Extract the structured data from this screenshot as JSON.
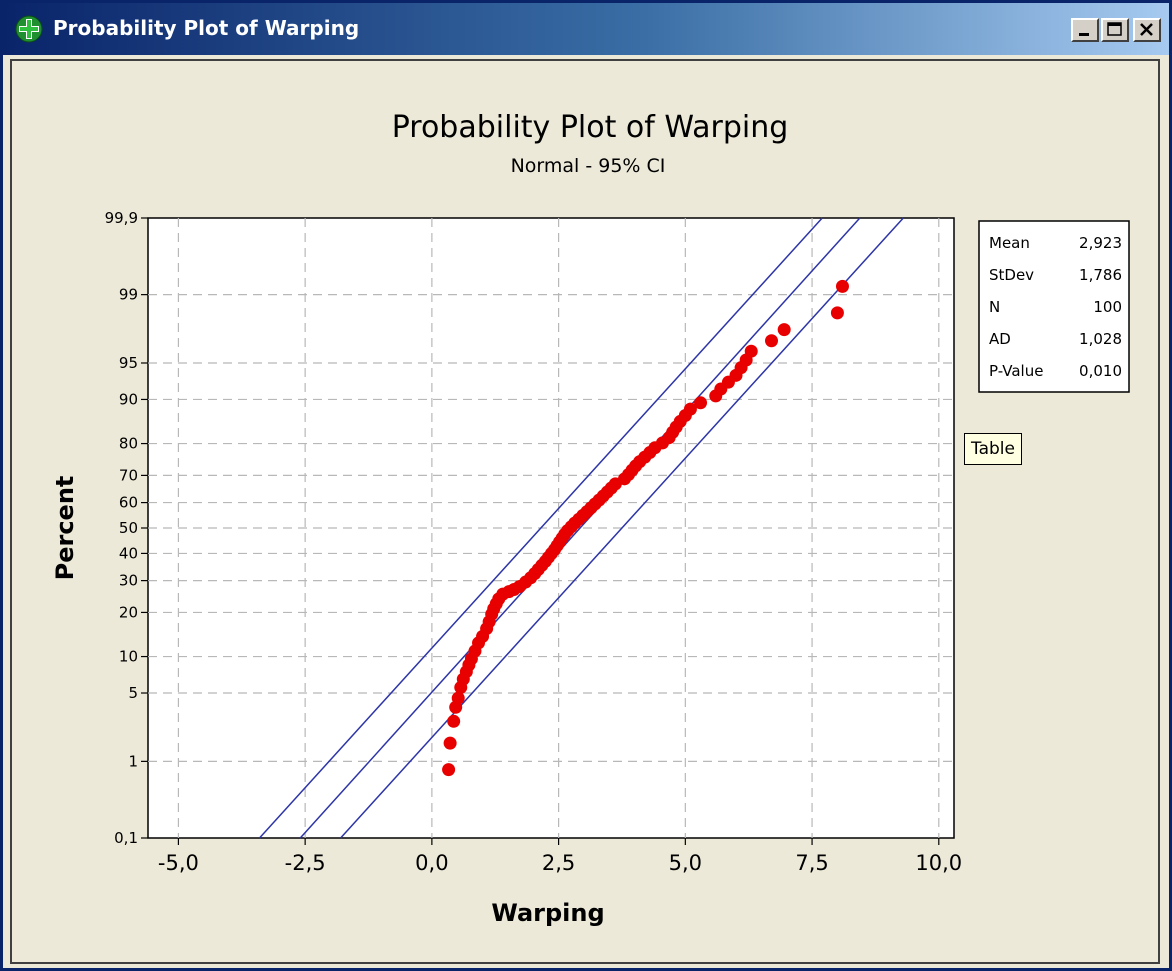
{
  "window": {
    "title": "Probability Plot of Warping",
    "icon": "minitab-plus-icon",
    "controls": [
      "minimize-icon",
      "maximize-icon",
      "close-icon"
    ]
  },
  "chart_data": {
    "type": "scatter",
    "title": "Probability Plot of Warping",
    "subtitle": "Normal - 95% CI",
    "xlabel": "Warping",
    "ylabel": "Percent",
    "xlim": [
      -5.6,
      10.3
    ],
    "ylim": [
      0.1,
      99.9
    ],
    "y_scale": "normal-probability",
    "grid": true,
    "x_ticks": [
      -5,
      -2.5,
      0,
      2.5,
      5,
      7.5,
      10
    ],
    "x_tick_labels": [
      "-5,0",
      "-2,5",
      "0,0",
      "2,5",
      "5,0",
      "7,5",
      "10,0"
    ],
    "y_ticks": [
      0.1,
      1,
      5,
      10,
      20,
      30,
      40,
      50,
      60,
      70,
      80,
      90,
      95,
      99,
      99.9
    ],
    "y_tick_labels": [
      "0,1",
      "1",
      "5",
      "10",
      "20",
      "30",
      "40",
      "50",
      "60",
      "70",
      "80",
      "90",
      "95",
      "99",
      "99,9"
    ],
    "fit_line_color": "#2d35a8",
    "point_color": "#e80000",
    "points": [
      [
        0.33,
        0.8
      ],
      [
        0.36,
        1.6
      ],
      [
        0.43,
        2.7
      ],
      [
        0.47,
        3.7
      ],
      [
        0.52,
        4.5
      ],
      [
        0.57,
        5.6
      ],
      [
        0.62,
        6.6
      ],
      [
        0.68,
        7.6
      ],
      [
        0.73,
        8.6
      ],
      [
        0.78,
        9.6
      ],
      [
        0.85,
        11.0
      ],
      [
        0.92,
        12.6
      ],
      [
        1.0,
        14.0
      ],
      [
        1.08,
        15.8
      ],
      [
        1.13,
        17.5
      ],
      [
        1.18,
        19.5
      ],
      [
        1.22,
        21.0
      ],
      [
        1.27,
        22.5
      ],
      [
        1.32,
        24.0
      ],
      [
        1.4,
        25.5
      ],
      [
        1.52,
        26.3
      ],
      [
        1.62,
        27.0
      ],
      [
        1.73,
        28.0
      ],
      [
        1.85,
        29.5
      ],
      [
        1.95,
        31.0
      ],
      [
        2.03,
        32.5
      ],
      [
        2.1,
        34.0
      ],
      [
        2.17,
        35.5
      ],
      [
        2.24,
        37.0
      ],
      [
        2.3,
        38.5
      ],
      [
        2.36,
        40.0
      ],
      [
        2.42,
        41.5
      ],
      [
        2.47,
        43.0
      ],
      [
        2.52,
        44.5
      ],
      [
        2.57,
        46.0
      ],
      [
        2.62,
        47.5
      ],
      [
        2.68,
        49.0
      ],
      [
        2.75,
        50.5
      ],
      [
        2.82,
        52.0
      ],
      [
        2.9,
        53.5
      ],
      [
        2.98,
        55.0
      ],
      [
        3.06,
        56.5
      ],
      [
        3.14,
        58.0
      ],
      [
        3.22,
        59.5
      ],
      [
        3.3,
        61.0
      ],
      [
        3.38,
        62.5
      ],
      [
        3.46,
        64.0
      ],
      [
        3.54,
        65.5
      ],
      [
        3.62,
        67.0
      ],
      [
        3.8,
        68.8
      ],
      [
        3.88,
        70.3
      ],
      [
        3.95,
        71.8
      ],
      [
        4.02,
        73.2
      ],
      [
        4.1,
        74.6
      ],
      [
        4.2,
        76.0
      ],
      [
        4.3,
        77.4
      ],
      [
        4.4,
        78.8
      ],
      [
        4.55,
        80.2
      ],
      [
        4.68,
        81.6
      ],
      [
        4.75,
        83.0
      ],
      [
        4.82,
        84.3
      ],
      [
        4.9,
        85.6
      ],
      [
        5.0,
        86.9
      ],
      [
        5.1,
        88.2
      ],
      [
        5.3,
        89.4
      ],
      [
        5.6,
        90.6
      ],
      [
        5.7,
        91.7
      ],
      [
        5.85,
        92.7
      ],
      [
        6.0,
        93.6
      ],
      [
        6.1,
        94.5
      ],
      [
        6.2,
        95.3
      ],
      [
        6.3,
        96.1
      ],
      [
        6.7,
        96.9
      ],
      [
        6.95,
        97.6
      ],
      [
        8.0,
        98.4
      ],
      [
        8.1,
        99.2
      ]
    ],
    "fit_line": {
      "mean": 2.923,
      "stdev": 1.786
    },
    "ci_band": {
      "upper": [
        [
          -3.4,
          0.1
        ],
        [
          7.7,
          99.9
        ]
      ],
      "lower": [
        [
          -1.8,
          0.1
        ],
        [
          9.3,
          99.9
        ]
      ]
    },
    "legend_position": "top-right"
  },
  "stats_table": {
    "rows": [
      {
        "label": "Mean",
        "value": "2,923"
      },
      {
        "label": "StDev",
        "value": "1,786"
      },
      {
        "label": "N",
        "value": "100"
      },
      {
        "label": "AD",
        "value": "1,028"
      },
      {
        "label": "P-Value",
        "value": "0,010"
      }
    ]
  },
  "tooltip": {
    "text": "Table"
  }
}
